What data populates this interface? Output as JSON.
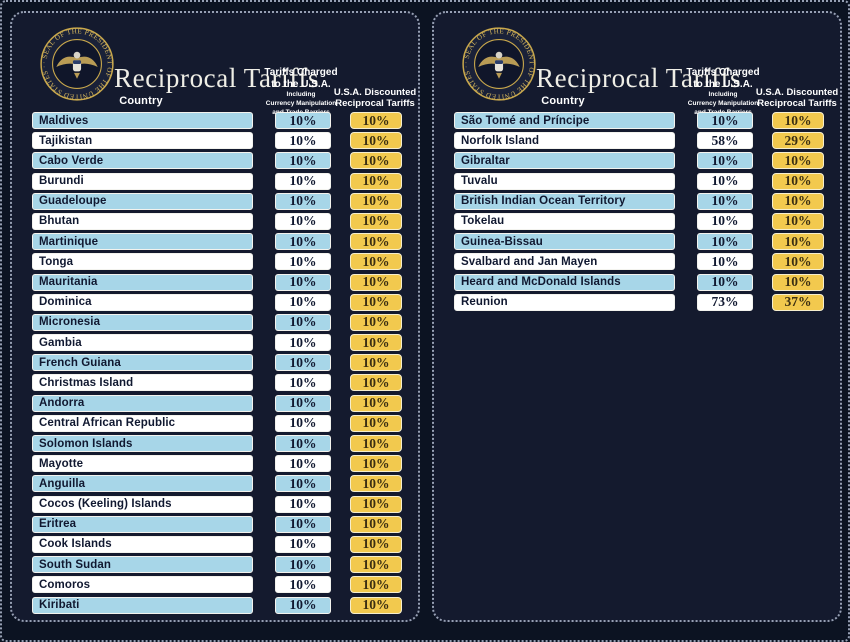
{
  "colors": {
    "page_bg": "#0c1322",
    "panel_bg": "#141a2e",
    "dotted": "#97a0b4",
    "title": "#efeee6",
    "row_blue": "#a7d6e8",
    "row_white": "#ffffff",
    "box_yellow": "#f2c94e",
    "text_dark": "#101830",
    "yellow_text": "#3a2e12",
    "seal_gold": "#c9a84c"
  },
  "seal": {
    "text": "· SEAL OF THE PRESIDENT OF THE UNITED STATES ·"
  },
  "header": {
    "title": "Reciprocal Tariffs",
    "country_label": "Country",
    "charged_line1": "Tariffs Charged",
    "charged_line2": "to the U.S.A.",
    "charged_sub1": "Including",
    "charged_sub2": "Currency Manipulation",
    "charged_sub3": "and Trade Barriers",
    "discount_line1": "U.S.A. Discounted",
    "discount_line2": "Reciprocal Tariffs"
  },
  "chart_data": [
    {
      "type": "table",
      "title": "Reciprocal Tariffs",
      "columns": [
        "Country",
        "Tariffs Charged to the U.S.A. Including Currency Manipulation and Trade Barriers",
        "U.S.A. Discounted Reciprocal Tariffs"
      ],
      "rows": [
        [
          "Maldives",
          "10%",
          "10%"
        ],
        [
          "Tajikistan",
          "10%",
          "10%"
        ],
        [
          "Cabo Verde",
          "10%",
          "10%"
        ],
        [
          "Burundi",
          "10%",
          "10%"
        ],
        [
          "Guadeloupe",
          "10%",
          "10%"
        ],
        [
          "Bhutan",
          "10%",
          "10%"
        ],
        [
          "Martinique",
          "10%",
          "10%"
        ],
        [
          "Tonga",
          "10%",
          "10%"
        ],
        [
          "Mauritania",
          "10%",
          "10%"
        ],
        [
          "Dominica",
          "10%",
          "10%"
        ],
        [
          "Micronesia",
          "10%",
          "10%"
        ],
        [
          "Gambia",
          "10%",
          "10%"
        ],
        [
          "French Guiana",
          "10%",
          "10%"
        ],
        [
          "Christmas Island",
          "10%",
          "10%"
        ],
        [
          "Andorra",
          "10%",
          "10%"
        ],
        [
          "Central African Republic",
          "10%",
          "10%"
        ],
        [
          "Solomon Islands",
          "10%",
          "10%"
        ],
        [
          "Mayotte",
          "10%",
          "10%"
        ],
        [
          "Anguilla",
          "10%",
          "10%"
        ],
        [
          "Cocos (Keeling) Islands",
          "10%",
          "10%"
        ],
        [
          "Eritrea",
          "10%",
          "10%"
        ],
        [
          "Cook Islands",
          "10%",
          "10%"
        ],
        [
          "South Sudan",
          "10%",
          "10%"
        ],
        [
          "Comoros",
          "10%",
          "10%"
        ],
        [
          "Kiribati",
          "10%",
          "10%"
        ]
      ]
    },
    {
      "type": "table",
      "title": "Reciprocal Tariffs",
      "columns": [
        "Country",
        "Tariffs Charged to the U.S.A. Including Currency Manipulation and Trade Barriers",
        "U.S.A. Discounted Reciprocal Tariffs"
      ],
      "rows": [
        [
          "São Tomé and Príncipe",
          "10%",
          "10%"
        ],
        [
          "Norfolk Island",
          "58%",
          "29%"
        ],
        [
          "Gibraltar",
          "10%",
          "10%"
        ],
        [
          "Tuvalu",
          "10%",
          "10%"
        ],
        [
          "British Indian Ocean Territory",
          "10%",
          "10%"
        ],
        [
          "Tokelau",
          "10%",
          "10%"
        ],
        [
          "Guinea-Bissau",
          "10%",
          "10%"
        ],
        [
          "Svalbard and Jan Mayen",
          "10%",
          "10%"
        ],
        [
          "Heard and McDonald Islands",
          "10%",
          "10%"
        ],
        [
          "Reunion",
          "73%",
          "37%"
        ]
      ]
    }
  ]
}
